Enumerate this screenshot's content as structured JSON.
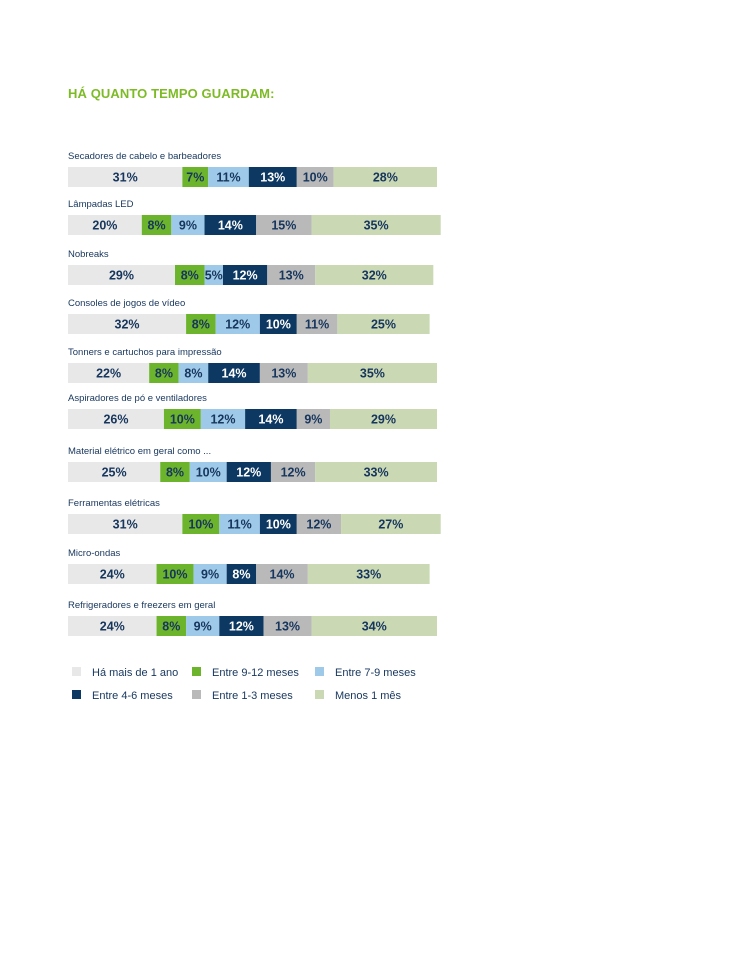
{
  "chart_data": {
    "type": "bar",
    "stacked": true,
    "orientation": "horizontal",
    "title": "HÁ QUANTO TEMPO GUARDAM:",
    "categories": [
      "Secadores de cabelo e barbeadores",
      "Lâmpadas LED",
      "Nobreaks",
      "Consoles de jogos de vídeo",
      "Tonners e cartuchos para impressão",
      "Aspiradores de pó e ventiladores",
      "Material elétrico em geral como ...",
      "Ferramentas elétricas",
      "Micro-ondas",
      "Refrigeradores e freezers em geral"
    ],
    "series": [
      {
        "name": "Há mais de 1 ano",
        "color": "#e8e8e8",
        "text_color": "#17365d",
        "values": [
          31,
          20,
          29,
          32,
          22,
          26,
          25,
          31,
          24,
          24
        ]
      },
      {
        "name": "Entre 9-12 meses",
        "color": "#6cb42c",
        "text_color": "#17365d",
        "values": [
          7,
          8,
          8,
          8,
          8,
          10,
          8,
          10,
          10,
          8
        ]
      },
      {
        "name": "Entre 7-9 meses",
        "color": "#9ec9e8",
        "text_color": "#17365d",
        "values": [
          11,
          9,
          5,
          12,
          8,
          12,
          10,
          11,
          9,
          9
        ]
      },
      {
        "name": "Entre 4-6 meses",
        "color": "#0d3862",
        "text_color": "#ffffff",
        "values": [
          13,
          14,
          12,
          10,
          14,
          14,
          12,
          10,
          8,
          12
        ]
      },
      {
        "name": "Entre 1-3 meses",
        "color": "#b9b9b9",
        "text_color": "#17365d",
        "values": [
          10,
          15,
          13,
          11,
          13,
          9,
          12,
          12,
          14,
          13
        ]
      },
      {
        "name": "Menos 1 mês",
        "color": "#cad8b4",
        "text_color": "#17365d",
        "values": [
          28,
          35,
          32,
          25,
          35,
          29,
          33,
          27,
          33,
          34
        ]
      }
    ],
    "value_format": "{v}%",
    "legend_position": "bottom-left",
    "grid": false
  }
}
